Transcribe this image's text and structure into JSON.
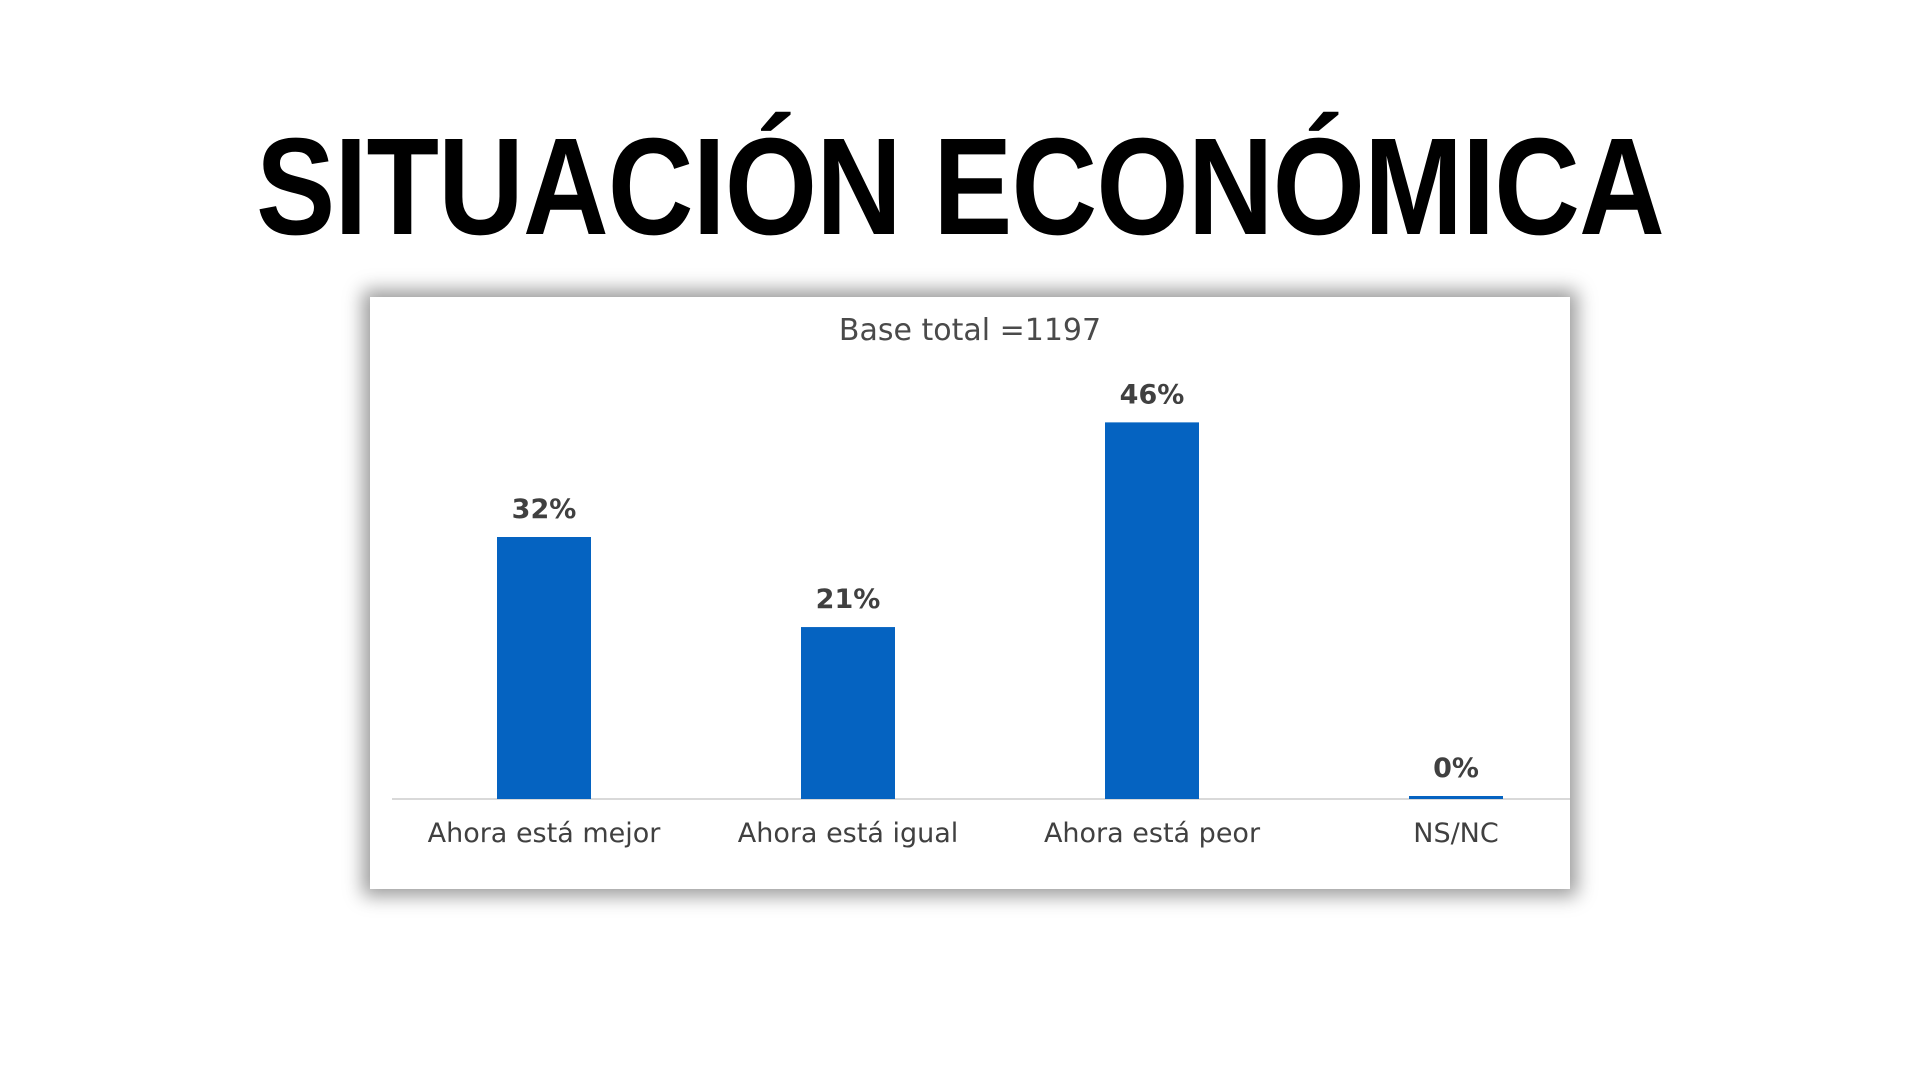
{
  "page": {
    "title": "SITUACIÓN ECONÓMICA"
  },
  "chart_data": {
    "type": "bar",
    "title": "Base total =1197",
    "categories": [
      "Ahora está mejor",
      "Ahora está igual",
      "Ahora está peor",
      "NS/NC"
    ],
    "values": [
      32,
      21,
      46,
      0
    ],
    "data_labels": [
      "32%",
      "21%",
      "46%",
      "0%"
    ],
    "unit": "%",
    "ylim": [
      0,
      50
    ],
    "grid": false,
    "legend": "none",
    "xlabel": "",
    "ylabel": "",
    "colors": {
      "bar": "#0563C1",
      "axis": "#d9d9d9"
    }
  }
}
